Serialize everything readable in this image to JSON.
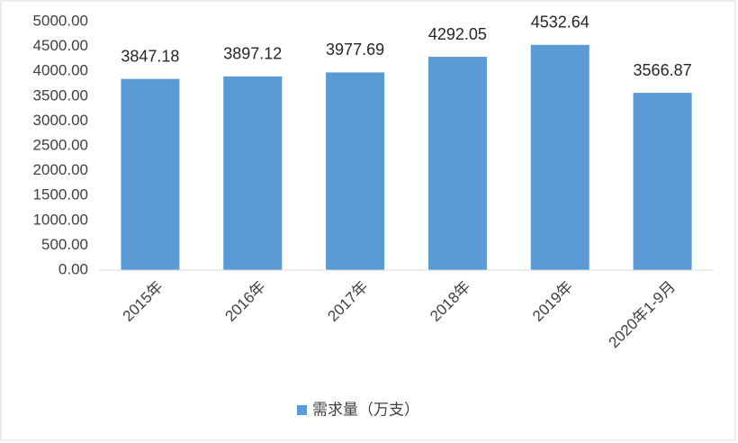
{
  "chart_data": {
    "type": "bar",
    "categories": [
      "2015年",
      "2016年",
      "2017年",
      "2018年",
      "2019年",
      "2020年1-9月"
    ],
    "series": [
      {
        "name": "需求量（万支）",
        "color": "#5b9bd5",
        "values": [
          3847.18,
          3897.12,
          3977.69,
          4292.05,
          4532.64,
          3566.87
        ]
      }
    ],
    "ylim": [
      0,
      5000
    ],
    "yticks": [
      {
        "value": 0,
        "label": "0.00"
      },
      {
        "value": 500,
        "label": "500.00"
      },
      {
        "value": 1000,
        "label": "1000.00"
      },
      {
        "value": 1500,
        "label": "1500.00"
      },
      {
        "value": 2000,
        "label": "2000.00"
      },
      {
        "value": 2500,
        "label": "2500.00"
      },
      {
        "value": 3000,
        "label": "3000.00"
      },
      {
        "value": 3500,
        "label": "3500.00"
      },
      {
        "value": 4000,
        "label": "4000.00"
      },
      {
        "value": 4500,
        "label": "4500.00"
      },
      {
        "value": 5000,
        "label": "5000.00"
      }
    ],
    "grid": false,
    "legend": "bottom"
  }
}
